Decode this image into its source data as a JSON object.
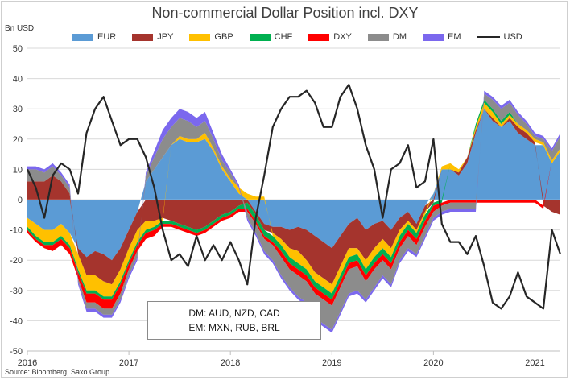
{
  "chart_data": {
    "type": "area",
    "title": "Non-commercial Dollar Position incl. DXY",
    "ylabel": "Bn USD",
    "xlabel": "",
    "ylim": [
      -50,
      50
    ],
    "y_ticks": [
      "50",
      "40",
      "30",
      "20",
      "10",
      "0",
      "-10",
      "-20",
      "-30",
      "-40",
      "-50"
    ],
    "x_ticks": [
      "2016",
      "2017",
      "2018",
      "2019",
      "2020",
      "2021"
    ],
    "x_tick_values": [
      2016,
      2017,
      2018,
      2019,
      2020,
      2021
    ],
    "xlim": [
      2016,
      2021.25
    ],
    "grid": "horizontal",
    "legend_position": "top",
    "x": [
      2016.0,
      2016.083,
      2016.167,
      2016.25,
      2016.333,
      2016.417,
      2016.5,
      2016.583,
      2016.667,
      2016.75,
      2016.833,
      2016.917,
      2017.0,
      2017.083,
      2017.167,
      2017.25,
      2017.333,
      2017.417,
      2017.5,
      2017.583,
      2017.667,
      2017.75,
      2017.833,
      2017.917,
      2018.0,
      2018.083,
      2018.167,
      2018.25,
      2018.333,
      2018.417,
      2018.5,
      2018.583,
      2018.667,
      2018.75,
      2018.833,
      2018.917,
      2019.0,
      2019.083,
      2019.167,
      2019.25,
      2019.333,
      2019.417,
      2019.5,
      2019.583,
      2019.667,
      2019.75,
      2019.833,
      2019.917,
      2020.0,
      2020.083,
      2020.167,
      2020.25,
      2020.333,
      2020.417,
      2020.5,
      2020.583,
      2020.667,
      2020.75,
      2020.833,
      2020.917,
      2021.0,
      2021.083,
      2021.167,
      2021.25
    ],
    "stack_order": [
      "EUR",
      "JPY",
      "GBP",
      "CHF",
      "DXY",
      "DM",
      "EM"
    ],
    "series": [
      {
        "name": "EUR",
        "color": "#5b9bd5",
        "values": [
          -6,
          -8,
          -10,
          -10,
          -8,
          -11,
          -16,
          -19,
          -17,
          -18,
          -20,
          -16,
          -10,
          -4,
          6,
          10,
          14,
          18,
          20,
          19,
          19,
          20,
          16,
          10,
          6,
          2,
          0,
          -4,
          -8,
          -9,
          -9,
          -10,
          -9,
          -10,
          -12,
          -14,
          -16,
          -12,
          -8,
          -6,
          -10,
          -8,
          -7,
          -10,
          -6,
          -4,
          -8,
          -2,
          2,
          10,
          10,
          8,
          12,
          22,
          30,
          26,
          24,
          26,
          22,
          20,
          18,
          18,
          12,
          16
        ]
      },
      {
        "name": "JPY",
        "color": "#a5342d",
        "values": [
          6,
          6,
          6,
          8,
          6,
          2,
          -2,
          -6,
          -8,
          -9,
          -8,
          -7,
          -6,
          -6,
          -7,
          -7,
          -6,
          -7,
          -8,
          -9,
          -10,
          -9,
          -7,
          -5,
          -4,
          -2,
          -1,
          -1,
          -2,
          -2,
          -4,
          -6,
          -8,
          -10,
          -12,
          -12,
          -12,
          -10,
          -8,
          -10,
          -10,
          -8,
          -6,
          -6,
          -4,
          -3,
          -2,
          -2,
          -1,
          0,
          0,
          1,
          2,
          1,
          0,
          1,
          0,
          1,
          2,
          2,
          1,
          -2,
          -4,
          -5
        ]
      },
      {
        "name": "GBP",
        "color": "#ffc000",
        "values": [
          -3,
          -4,
          -4,
          -4,
          -4,
          -4,
          -5,
          -5,
          -5,
          -5,
          -4,
          -4,
          -4,
          -4,
          -3,
          -2,
          -1,
          0,
          1,
          1,
          1,
          2,
          1,
          1,
          1,
          2,
          2,
          1,
          1,
          -1,
          -2,
          -3,
          -4,
          -3,
          -3,
          -3,
          -3,
          -3,
          -3,
          -2,
          -3,
          -3,
          -3,
          -3,
          -2,
          -1,
          -1,
          -1,
          0,
          1,
          2,
          1,
          0,
          1,
          2,
          2,
          1,
          1,
          1,
          1,
          1,
          1,
          1,
          1
        ]
      },
      {
        "name": "CHF",
        "color": "#00b050",
        "values": [
          -1,
          -1,
          -1,
          -1,
          -1,
          -1,
          -1,
          -1,
          -1,
          -1,
          -1,
          -1,
          -1,
          -1,
          -1,
          -1,
          -1,
          -1,
          -1,
          -1,
          -1,
          -1,
          -1,
          -1,
          -1,
          -1,
          -2,
          -2,
          -2,
          -2,
          -2,
          -2,
          -2,
          -2,
          -2,
          -2,
          -2,
          -2,
          -2,
          -2,
          -2,
          -2,
          -2,
          -2,
          -2,
          -2,
          -2,
          -2,
          -1,
          -1,
          0,
          0,
          0,
          1,
          1,
          1,
          1,
          1,
          0,
          0,
          0,
          0,
          0,
          0
        ]
      },
      {
        "name": "DXY",
        "color": "#ff0000",
        "values": [
          -1,
          -1,
          -1,
          -2,
          -2,
          -2,
          -2,
          -3,
          -3,
          -3,
          -3,
          -3,
          -2,
          -2,
          -2,
          -2,
          -1,
          -1,
          -1,
          -1,
          -1,
          -1,
          -1,
          -1,
          -1,
          -1,
          -1,
          -1,
          -1,
          -1,
          -2,
          -2,
          -2,
          -2,
          -2,
          -2,
          -2,
          -2,
          -2,
          -2,
          -2,
          -2,
          -2,
          -2,
          -2,
          -2,
          -2,
          -2,
          -2,
          -1,
          -1,
          -1,
          -1,
          -1,
          -1,
          -1,
          -1,
          -1,
          -1,
          -1,
          -1,
          -1,
          0,
          0
        ]
      },
      {
        "name": "DM",
        "color": "#8c8c8c",
        "values": [
          4,
          4,
          3,
          3,
          2,
          2,
          -1,
          -2,
          -2,
          -2,
          -2,
          -2,
          -2,
          -2,
          2,
          4,
          6,
          6,
          6,
          6,
          4,
          4,
          3,
          2,
          2,
          0,
          -2,
          -3,
          -4,
          -5,
          -6,
          -6,
          -7,
          -7,
          -8,
          -8,
          -8,
          -8,
          -8,
          -8,
          -6,
          -6,
          -5,
          -5,
          -4,
          -4,
          -3,
          -3,
          -2,
          -2,
          -2,
          -2,
          -2,
          -2,
          2,
          3,
          4,
          3,
          3,
          2,
          1,
          1,
          3,
          4
        ]
      },
      {
        "name": "EM",
        "color": "#7b68ee",
        "values": [
          1,
          1,
          1,
          1,
          1,
          1,
          -1,
          -1,
          -1,
          -1,
          -1,
          -1,
          -1,
          -1,
          1,
          2,
          3,
          3,
          3,
          3,
          3,
          3,
          2,
          2,
          1,
          1,
          -1,
          -1,
          -1,
          -1,
          -1,
          -1,
          -1,
          -1,
          -1,
          -1,
          -1,
          -1,
          -1,
          -1,
          -1,
          -1,
          -1,
          -1,
          -1,
          -1,
          -1,
          -1,
          -1,
          -1,
          -1,
          -1,
          -1,
          -1,
          1,
          1,
          1,
          1,
          1,
          1,
          1,
          1,
          1,
          1
        ]
      },
      {
        "name": "USD",
        "color": "#262626",
        "type": "line",
        "values": [
          10,
          4,
          -6,
          8,
          12,
          10,
          2,
          22,
          30,
          34,
          26,
          18,
          20,
          20,
          14,
          4,
          -10,
          -20,
          -18,
          -22,
          -12,
          -20,
          -15,
          -20,
          -14,
          -20,
          -28,
          -6,
          8,
          24,
          30,
          34,
          34,
          36,
          32,
          24,
          24,
          34,
          38,
          30,
          18,
          10,
          -6,
          10,
          12,
          18,
          4,
          6,
          20,
          -8,
          -14,
          -14,
          -18,
          -12,
          -22,
          -34,
          -36,
          -32,
          -24,
          -32,
          -34,
          -36,
          -10,
          -18
        ]
      }
    ],
    "annotations": [
      "DM: AUD, NZD, CAD",
      "EM: MXN, RUB, BRL"
    ],
    "source": "Source: Bloomberg, Saxo Group"
  },
  "legend": [
    {
      "label": "EUR",
      "color": "#5b9bd5",
      "kind": "box"
    },
    {
      "label": "JPY",
      "color": "#a5342d",
      "kind": "box"
    },
    {
      "label": "GBP",
      "color": "#ffc000",
      "kind": "box"
    },
    {
      "label": "CHF",
      "color": "#00b050",
      "kind": "box"
    },
    {
      "label": "DXY",
      "color": "#ff0000",
      "kind": "box"
    },
    {
      "label": "DM",
      "color": "#8c8c8c",
      "kind": "box"
    },
    {
      "label": "EM",
      "color": "#7b68ee",
      "kind": "box"
    },
    {
      "label": "USD",
      "color": "#262626",
      "kind": "line"
    }
  ]
}
